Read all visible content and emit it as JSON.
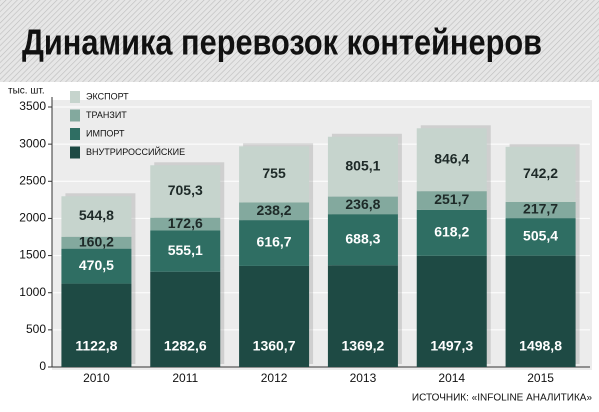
{
  "chart_data": {
    "type": "stacked-bar",
    "title": "Динамика перевозок контейнеров",
    "y_label": "тыс. шт.",
    "source": "ИСТОЧНИК: «INFOLINE АНАЛИТИКА»",
    "categories": [
      "2010",
      "2011",
      "2012",
      "2013",
      "2014",
      "2015"
    ],
    "series": [
      {
        "name": "ВНУТРИРОССИЙСКИЕ",
        "color": "#1e4a44",
        "label_color": "#ffffff",
        "values": [
          1122.8,
          1282.6,
          1360.7,
          1369.2,
          1497.3,
          1498.8
        ],
        "value_labels": [
          "1122,8",
          "1282,6",
          "1360,7",
          "1369,2",
          "1497,3",
          "1498,8"
        ]
      },
      {
        "name": "ИМПОРТ",
        "color": "#2f6e63",
        "label_color": "#ffffff",
        "values": [
          470.5,
          555.1,
          616.7,
          688.3,
          618.2,
          505.4
        ],
        "value_labels": [
          "470,5",
          "555,1",
          "616,7",
          "688,3",
          "618,2",
          "505,4"
        ]
      },
      {
        "name": "ТРАНЗИТ",
        "color": "#83a99e",
        "label_color": "#1e2a28",
        "values": [
          160.2,
          172.6,
          238.2,
          236.8,
          251.7,
          217.7
        ],
        "value_labels": [
          "160,2",
          "172,6",
          "238,2",
          "236,8",
          "251,7",
          "217,7"
        ]
      },
      {
        "name": "ЭКСПОРТ",
        "color": "#c6d4cd",
        "label_color": "#1e2a28",
        "values": [
          544.8,
          705.3,
          755,
          805.1,
          846.4,
          742.2
        ],
        "value_labels": [
          "544,8",
          "705,3",
          "755",
          "805,1",
          "846,4",
          "742,2"
        ]
      }
    ],
    "ylim": [
      0,
      3500
    ],
    "yticks": [
      0,
      500,
      1000,
      1500,
      2000,
      2500,
      3000,
      3500
    ],
    "grid": true,
    "legend": "upper left"
  }
}
